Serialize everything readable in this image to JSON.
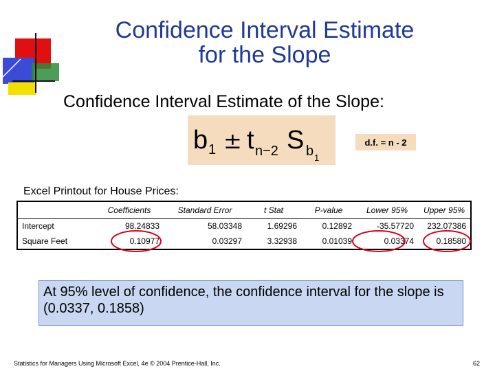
{
  "slide": {
    "title_line1": "Confidence Interval Estimate",
    "title_line2": "for the Slope",
    "subtitle": "Confidence Interval Estimate of the Slope:",
    "formula": {
      "b": "b",
      "b_sub": "1",
      "pm": "±",
      "t": "t",
      "t_sub": "n−2",
      "s": "S",
      "s_sub": "b",
      "s_subsub": "1"
    },
    "df_label": "d.f. = n - 2",
    "excel_label": "Excel Printout for House Prices:",
    "table": {
      "headers": [
        "",
        "Coefficients",
        "Standard Error",
        "t Stat",
        "P-value",
        "Lower 95%",
        "Upper 95%"
      ],
      "rows": [
        [
          "Intercept",
          "98.24833",
          "58.03348",
          "1.69296",
          "0.12892",
          "-35.57720",
          "232.07386"
        ],
        [
          "Square Feet",
          "0.10977",
          "0.03297",
          "3.32938",
          "0.01039",
          "0.03374",
          "0.18580"
        ]
      ]
    },
    "conclusion": "At 95% level of confidence, the confidence interval for the slope is (0.0337, 0.1858)",
    "footer_left": "Statistics for Managers Using Microsoft Excel, 4e © 2004 Prentice-Hall, Inc.",
    "page_number": "62",
    "colors": {
      "title": "#1f3a93",
      "formula_bg": "#f6dcbe",
      "conclusion_bg": "#c9d7f2",
      "highlight_ellipse": "#e0001b"
    }
  }
}
